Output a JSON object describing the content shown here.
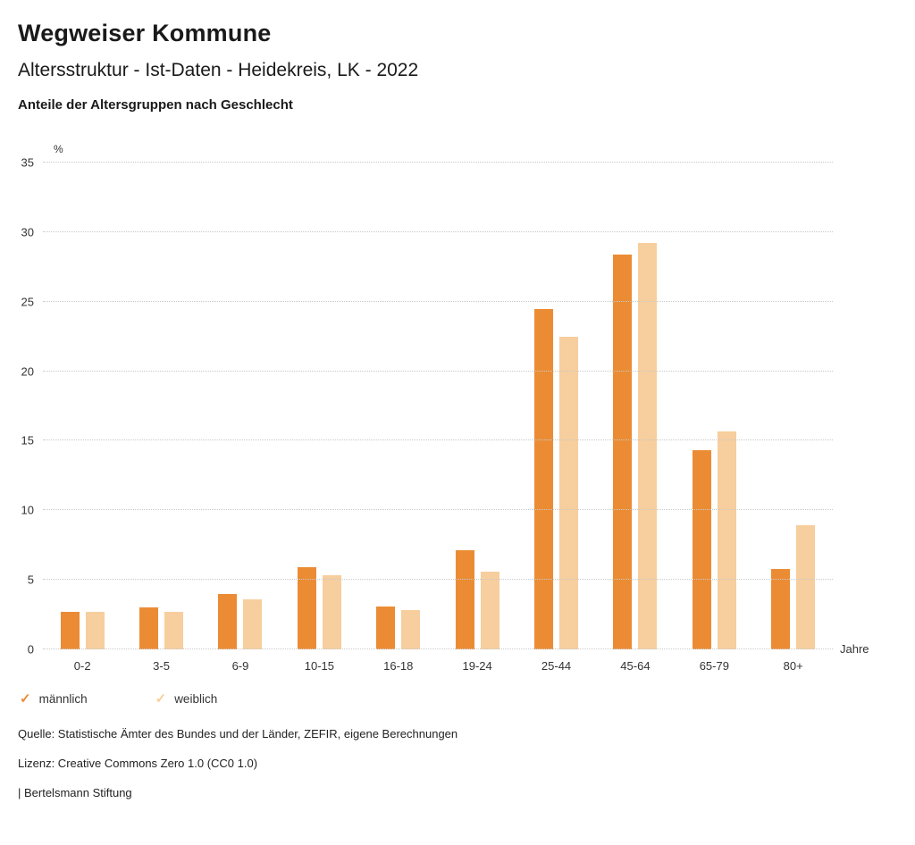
{
  "header": {
    "title": "Wegweiser Kommune",
    "subtitle": "Altersstruktur - Ist-Daten - Heidekreis, LK - 2022",
    "chart_heading": "Anteile der Altersgruppen nach Geschlecht"
  },
  "chart_data": {
    "type": "bar",
    "title": "Anteile der Altersgruppen nach Geschlecht",
    "y_unit_label": "%",
    "x_axis_label": "Jahre",
    "categories": [
      "0-2",
      "3-5",
      "6-9",
      "10-15",
      "16-18",
      "19-24",
      "25-44",
      "45-64",
      "65-79",
      "80+"
    ],
    "series": [
      {
        "name": "männlich",
        "color": "#EB8C34",
        "values": [
          2.7,
          3.0,
          4.0,
          5.9,
          3.1,
          7.1,
          24.5,
          28.4,
          14.3,
          5.8
        ]
      },
      {
        "name": "weiblich",
        "color": "#F7CE9D",
        "values": [
          2.7,
          2.7,
          3.6,
          5.3,
          2.8,
          5.6,
          22.5,
          29.2,
          15.7,
          8.9
        ]
      }
    ],
    "ylim": [
      0,
      35
    ],
    "y_ticks": [
      0,
      5,
      10,
      15,
      20,
      25,
      30,
      35
    ],
    "grid": "dotted horizontal",
    "legend_position": "bottom-left"
  },
  "legend": {
    "items": [
      {
        "label": "männlich",
        "color": "#EB8C34",
        "check_icon": "✓"
      },
      {
        "label": "weiblich",
        "color": "#F7CE9D",
        "check_icon": "✓"
      }
    ]
  },
  "footer": {
    "source": "Quelle: Statistische Ämter des Bundes und der Länder, ZEFIR, eigene Berechnungen",
    "license": "Lizenz: Creative Commons Zero 1.0 (CC0 1.0)",
    "attribution": "| Bertelsmann Stiftung"
  }
}
